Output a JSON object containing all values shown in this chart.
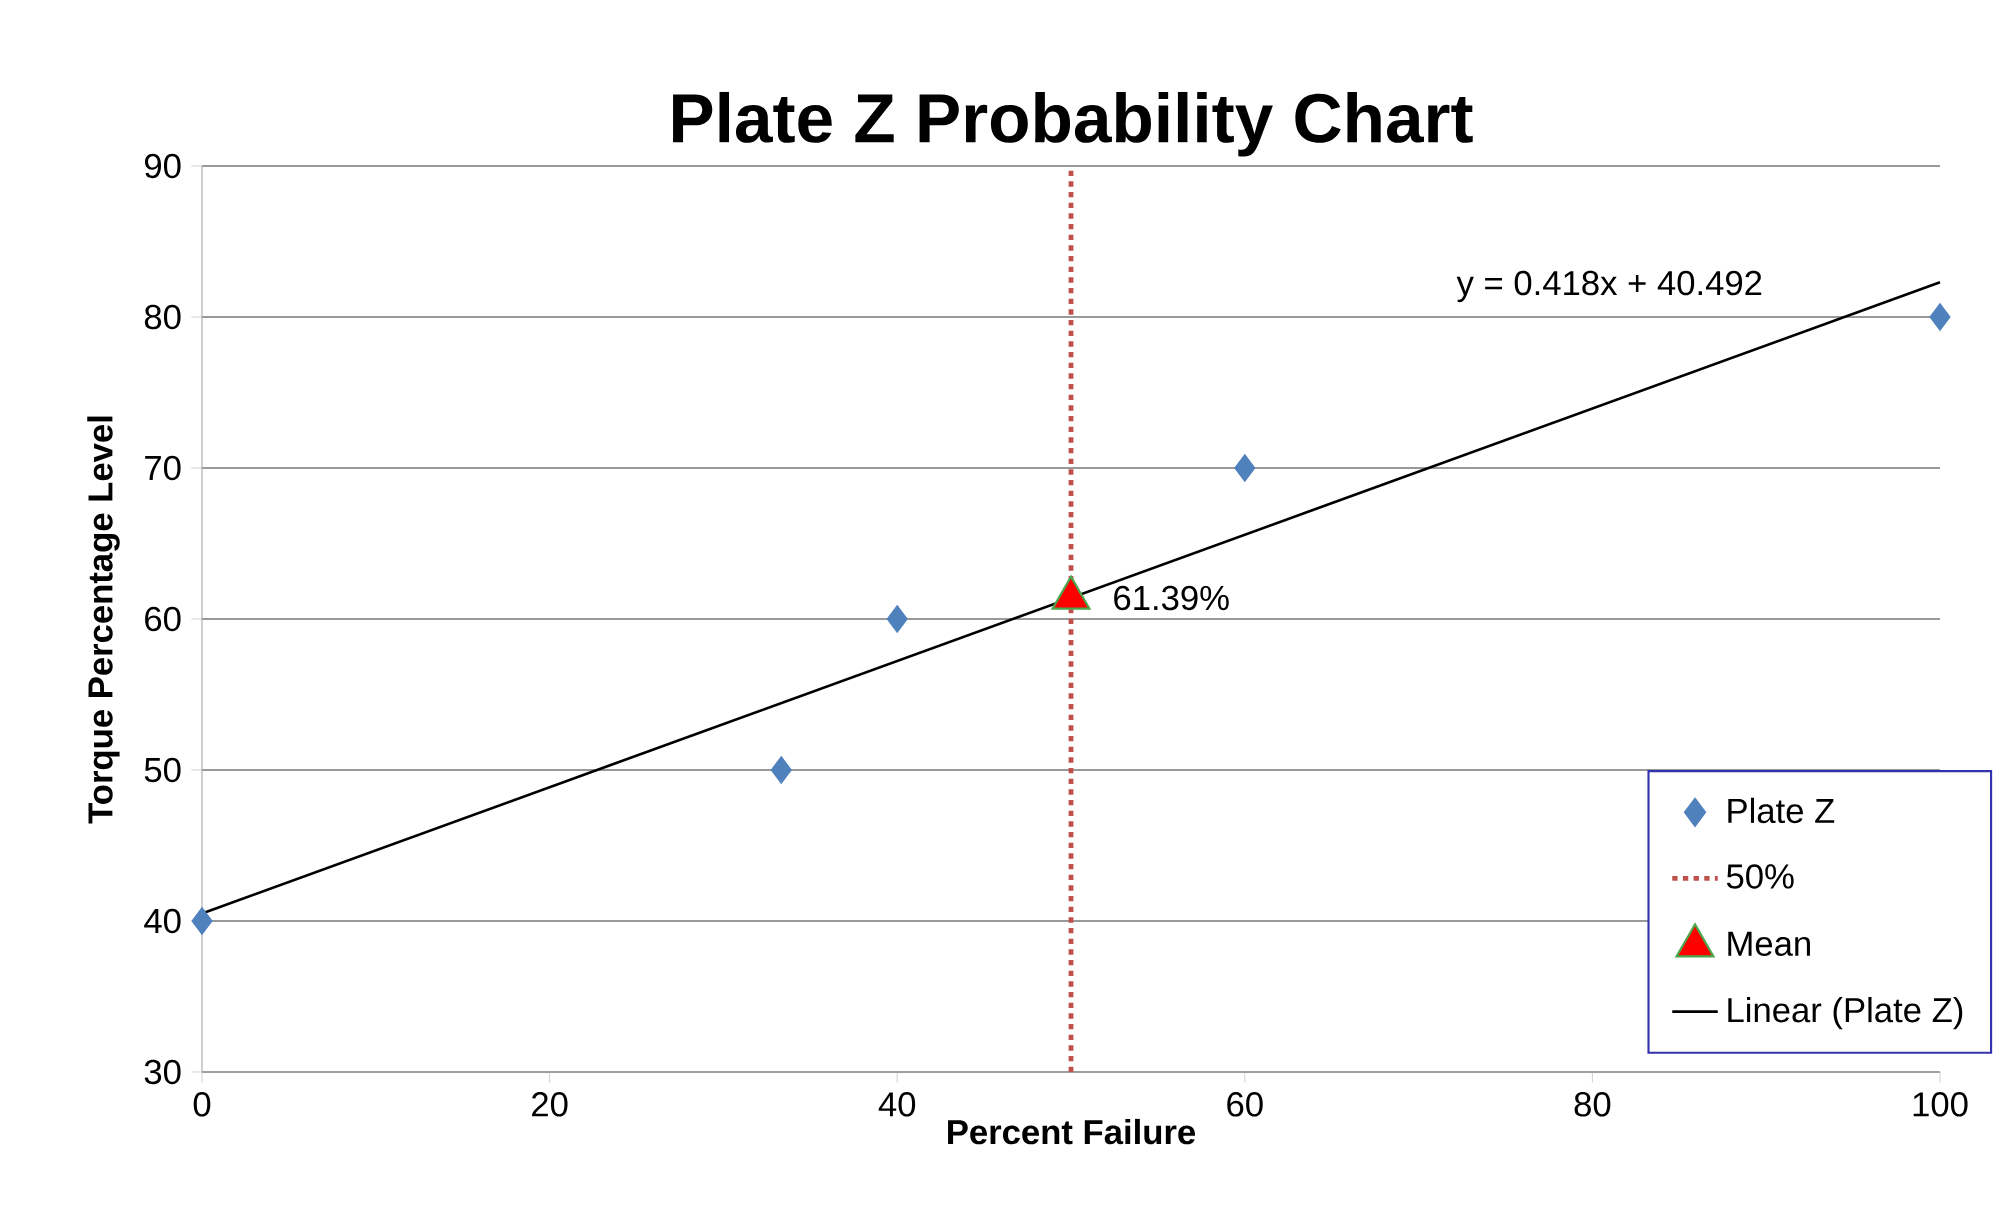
{
  "chart_data": {
    "type": "scatter",
    "title": "Plate Z Probability Chart",
    "xlabel": "Percent Failure",
    "ylabel": "Torque Percentage Level",
    "xlim": [
      0,
      100
    ],
    "xticks": [
      0,
      20,
      40,
      60,
      80,
      100
    ],
    "ylim": [
      30,
      90
    ],
    "yticks": [
      30,
      40,
      50,
      60,
      70,
      80,
      90
    ],
    "grid": "y",
    "legend": "bottom right",
    "annotations": [
      "y = 0.418x + 40.492"
    ],
    "series": [
      {
        "name": "Plate Z",
        "marker": "diamond",
        "color": "#4f81bd",
        "x": [
          0,
          33.33,
          40,
          60,
          100
        ],
        "values": [
          40,
          50,
          60,
          70,
          80
        ]
      },
      {
        "name": "50%",
        "type": "line",
        "marker": "none",
        "line_style": "dotted",
        "color": "#c0504d",
        "x": [
          50,
          50
        ],
        "values": [
          30,
          90
        ]
      },
      {
        "name": "Mean",
        "marker": "triangle",
        "color": "#ff0000",
        "x": [
          50
        ],
        "values": [
          61.39
        ],
        "value_labels": [
          "61.39%"
        ]
      },
      {
        "name": "Linear (Plate Z)",
        "type": "line",
        "marker": "none",
        "line_style": "solid",
        "color": "#000000",
        "x": [
          0,
          100
        ],
        "values": [
          40.5,
          82.3
        ]
      }
    ]
  }
}
